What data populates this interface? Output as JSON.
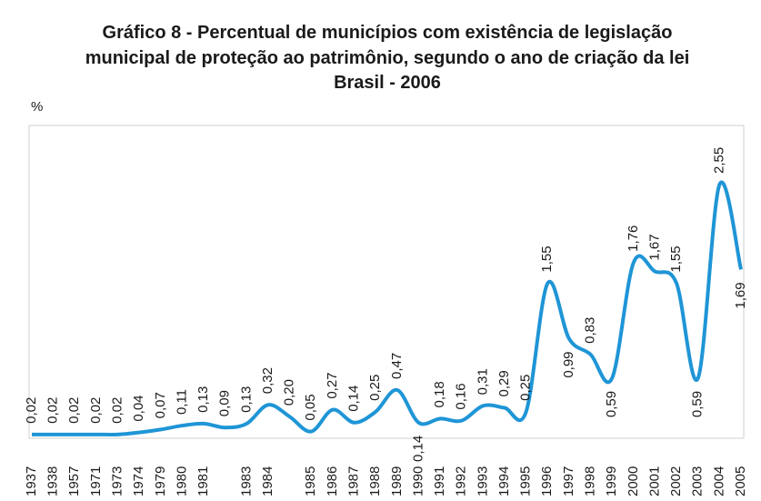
{
  "chart_data": {
    "type": "line",
    "title": "Gráfico 8 - Percentual de municípios com existência de legislação",
    "subtitle": "municipal de proteção ao patrimônio, segundo o ano de criação da lei",
    "subtitle2": "Brasil - 2006",
    "y_label": "%",
    "categories": [
      "1937",
      "1938",
      "1957",
      "1971",
      "1973",
      "1974",
      "1979",
      "1980",
      "1981",
      null,
      "1983",
      "1984",
      null,
      "1985",
      "1986",
      "1987",
      "1988",
      "1989",
      "1990",
      "1991",
      "1992",
      "1993",
      "1994",
      "1995",
      "1996",
      "1997",
      "1998",
      "1999",
      "2000",
      "2001",
      "2002",
      "2003",
      "2004",
      "2005"
    ],
    "series": [
      {
        "name": null,
        "color": "#1f95d6",
        "values": [
          0.02,
          0.02,
          0.02,
          0.02,
          0.02,
          0.04,
          0.07,
          0.11,
          0.13,
          0.09,
          0.13,
          0.32,
          0.2,
          0.05,
          0.27,
          0.14,
          0.25,
          0.47,
          0.14,
          0.18,
          0.16,
          0.31,
          0.29,
          0.25,
          1.55,
          0.99,
          0.83,
          0.59,
          1.76,
          1.67,
          1.55,
          0.59,
          2.55,
          1.69
        ],
        "value_labels": [
          "0,02",
          "0,02",
          "0,02",
          "0,02",
          "0,02",
          "0,04",
          "0,07",
          "0,11",
          "0,13",
          "0,09",
          "0,13",
          "0,32",
          "0,20",
          "0,05",
          "0,27",
          "0,14",
          "0,25",
          "0,47",
          "0,14",
          "0,18",
          "0,16",
          "0,31",
          "0,29",
          "0,25",
          "1,55",
          "0,99",
          "0,83",
          "0,59",
          "1,76",
          "1,67",
          "1,55",
          "0,59",
          "2,55",
          "1,69"
        ]
      }
    ]
  }
}
